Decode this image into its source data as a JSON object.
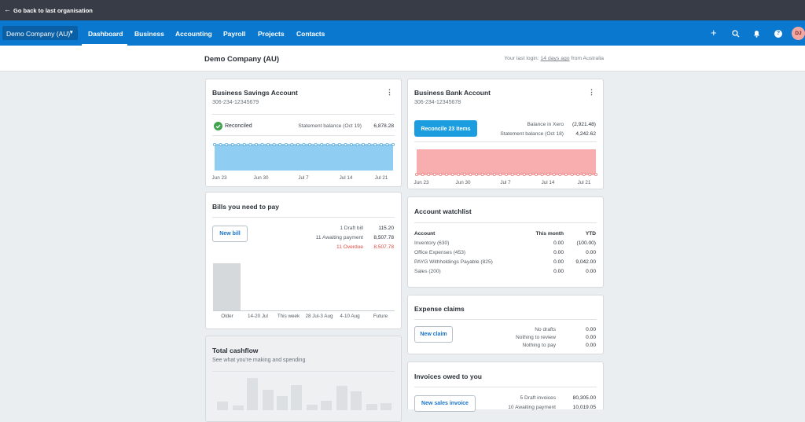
{
  "topbar": {
    "back": "Go back to last organisation"
  },
  "nav": {
    "org": "Demo Company (AU)",
    "items": [
      "Dashboard",
      "Business",
      "Accounting",
      "Payroll",
      "Projects",
      "Contacts"
    ],
    "avatar": "DJ"
  },
  "header": {
    "title": "Demo Company (AU)",
    "last_login": "Your last login:",
    "last_login_link": "14 days ago",
    "last_login_suffix": "from Australia"
  },
  "savings": {
    "title": "Business Savings Account",
    "number": "306-234-12345679",
    "status": "Reconciled",
    "balance_label": "Statement balance (Oct 19)",
    "balance": "6,878.28",
    "axis": [
      "Jun 23",
      "Jun 30",
      "Jul 7",
      "Jul 14",
      "Jul 21"
    ]
  },
  "bank": {
    "title": "Business Bank Account",
    "number": "306-234-12345678",
    "button": "Reconcile 23 items",
    "rows": [
      [
        "Balance in Xero",
        "(2,921.48)"
      ],
      [
        "Statement balance (Oct 18)",
        "4,242.62"
      ]
    ],
    "axis": [
      "Jun 23",
      "Jun 30",
      "Jul 7",
      "Jul 14",
      "Jul 21"
    ]
  },
  "bills": {
    "title": "Bills you need to pay",
    "button": "New bill",
    "rows": [
      [
        "1 Draft bill",
        "115.20"
      ],
      [
        "11 Awaiting payment",
        "8,507.78"
      ],
      [
        "11 Overdue",
        "8,507.78"
      ]
    ],
    "categories": [
      "Older",
      "14-20 Jul",
      "This week",
      "28 Jul-3 Aug",
      "4-10 Aug",
      "Future"
    ]
  },
  "cashflow": {
    "title": "Total cashflow",
    "subtitle": "See what you're making and spending"
  },
  "watchlist": {
    "title": "Account watchlist",
    "columns": [
      "Account",
      "This month",
      "YTD"
    ],
    "rows": [
      [
        "Inventory (630)",
        "0.00",
        "(100.00)"
      ],
      [
        "Office Expenses (453)",
        "0.00",
        "0.00"
      ],
      [
        "PAYG Withholdings Payable (825)",
        "0.00",
        "9,042.00"
      ],
      [
        "Sales (200)",
        "0.00",
        "0.00"
      ]
    ]
  },
  "expenses": {
    "title": "Expense claims",
    "button": "New claim",
    "rows": [
      [
        "No drafts",
        "0.00"
      ],
      [
        "Nothing to review",
        "0.00"
      ],
      [
        "Nothing to pay",
        "0.00"
      ]
    ]
  },
  "invoices": {
    "title": "Invoices owed to you",
    "button": "New sales invoice",
    "rows": [
      [
        "5 Draft invoices",
        "80,305.00"
      ],
      [
        "10 Awaiting payment",
        "10,019.05"
      ]
    ]
  }
}
